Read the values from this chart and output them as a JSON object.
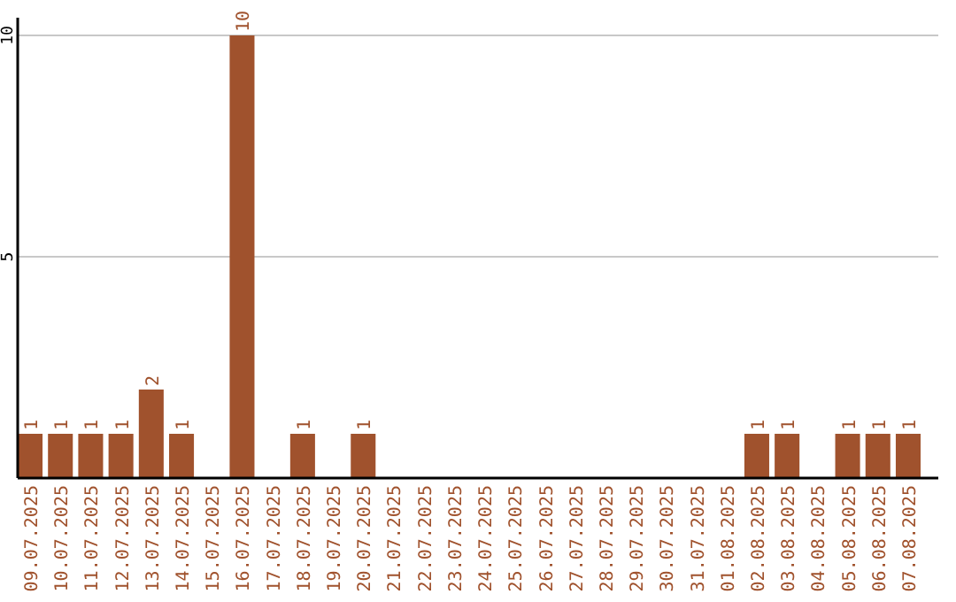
{
  "chart_data": {
    "type": "bar",
    "categories": [
      "09.07.2025",
      "10.07.2025",
      "11.07.2025",
      "12.07.2025",
      "13.07.2025",
      "14.07.2025",
      "15.07.2025",
      "16.07.2025",
      "17.07.2025",
      "18.07.2025",
      "19.07.2025",
      "20.07.2025",
      "21.07.2025",
      "22.07.2025",
      "23.07.2025",
      "24.07.2025",
      "25.07.2025",
      "26.07.2025",
      "27.07.2025",
      "28.07.2025",
      "29.07.2025",
      "30.07.2025",
      "31.07.2025",
      "01.08.2025",
      "02.08.2025",
      "03.08.2025",
      "04.08.2025",
      "05.08.2025",
      "06.08.2025",
      "07.08.2025"
    ],
    "values": [
      1,
      1,
      1,
      1,
      2,
      1,
      0,
      10,
      0,
      1,
      0,
      1,
      0,
      0,
      0,
      0,
      0,
      0,
      0,
      0,
      0,
      0,
      0,
      0,
      1,
      1,
      0,
      1,
      1,
      1
    ],
    "value_labels": [
      "1",
      "1",
      "1",
      "1",
      "2",
      "1",
      null,
      "10",
      null,
      "1",
      null,
      "1",
      null,
      null,
      null,
      null,
      null,
      null,
      null,
      null,
      null,
      null,
      null,
      null,
      "1",
      "1",
      null,
      "1",
      "1",
      "1"
    ],
    "color": "#a0522d",
    "ylim": [
      0,
      10.4
    ],
    "yticks": [
      5,
      10
    ],
    "grid": "y"
  }
}
